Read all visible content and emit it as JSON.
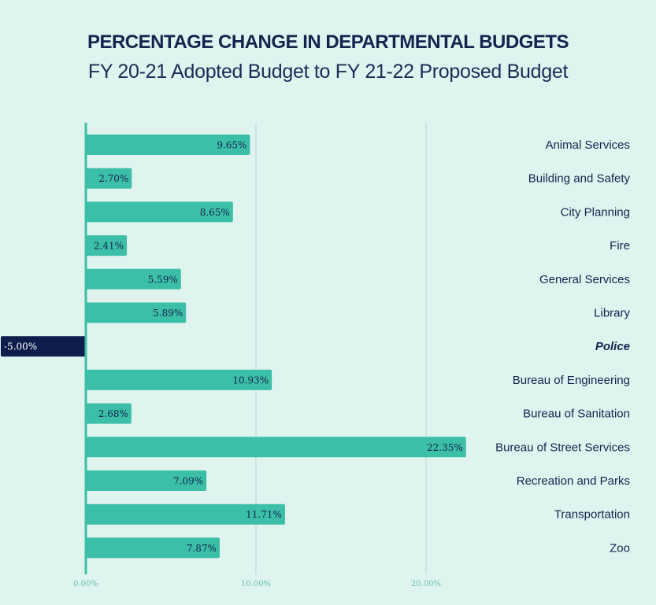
{
  "chart_data": {
    "type": "bar",
    "orientation": "horizontal",
    "title": "PERCENTAGE CHANGE IN DEPARTMENTAL BUDGETS",
    "subtitle": "FY 20-21 Adopted Budget to FY 21-22 Proposed Budget",
    "xlabel": "",
    "ylabel": "",
    "xlim": [
      -5,
      22.35
    ],
    "ticks": [
      {
        "value": 0,
        "label": "0.00%"
      },
      {
        "value": 10,
        "label": "10.00%"
      },
      {
        "value": 20,
        "label": "20.00%"
      }
    ],
    "categories": [
      "Animal Services",
      "Building and Safety",
      "City Planning",
      "Fire",
      "General Services",
      "Library",
      "Police",
      "Bureau of Engineering",
      "Bureau of Sanitation",
      "Bureau of Street Services",
      "Recreation and Parks",
      "Transportation",
      "Zoo"
    ],
    "values": [
      9.65,
      2.7,
      8.65,
      2.41,
      5.59,
      5.89,
      -5.0,
      10.93,
      2.68,
      22.35,
      7.09,
      11.71,
      7.87
    ],
    "value_labels": [
      "9.65%",
      "2.70%",
      "8.65%",
      "2.41%",
      "5.59%",
      "5.89%",
      "-5.00%",
      "10.93%",
      "2.68%",
      "22.35%",
      "7.09%",
      "11.71%",
      "7.87%"
    ],
    "highlight": "Police",
    "colors": {
      "bar": "#3bbfa6",
      "highlight_bar": "#0e1d4c",
      "text": "#13244f",
      "grid": "#b9ddd5",
      "axis": "#3bbfa6",
      "background": "#dff3ef"
    }
  }
}
